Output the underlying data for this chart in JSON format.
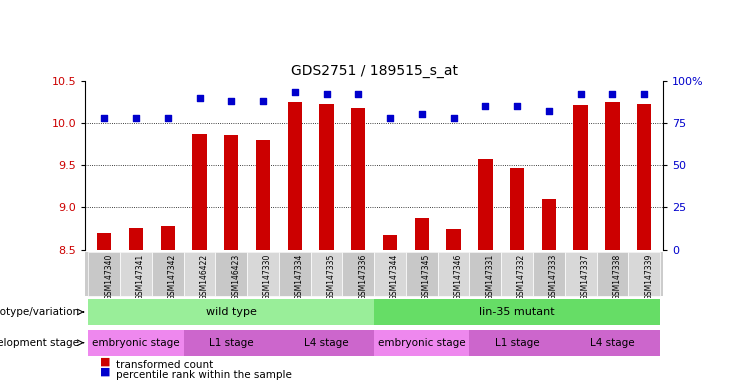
{
  "title": "GDS2751 / 189515_s_at",
  "samples": [
    "GSM147340",
    "GSM147341",
    "GSM147342",
    "GSM146422",
    "GSM146423",
    "GSM147330",
    "GSM147334",
    "GSM147335",
    "GSM147336",
    "GSM147344",
    "GSM147345",
    "GSM147346",
    "GSM147331",
    "GSM147332",
    "GSM147333",
    "GSM147337",
    "GSM147338",
    "GSM147339"
  ],
  "transformed_count": [
    8.7,
    8.75,
    8.78,
    9.87,
    9.86,
    9.8,
    10.25,
    10.22,
    10.18,
    8.67,
    8.87,
    8.74,
    9.57,
    9.47,
    9.1,
    10.21,
    10.25,
    10.22
  ],
  "percentile_rank": [
    78,
    78,
    78,
    90,
    88,
    88,
    93,
    92,
    92,
    78,
    80,
    78,
    85,
    85,
    82,
    92,
    92,
    92
  ],
  "ylim_left": [
    8.5,
    10.5
  ],
  "ylim_right": [
    0,
    100
  ],
  "yticks_left": [
    8.5,
    9.0,
    9.5,
    10.0,
    10.5
  ],
  "yticks_right": [
    0,
    25,
    50,
    75,
    100
  ],
  "bar_color": "#cc0000",
  "dot_color": "#0000cc",
  "grid_color": "#000000",
  "bg_color": "#ffffff",
  "plot_bg": "#ffffff",
  "genotype_groups": [
    {
      "label": "wild type",
      "start": 0,
      "end": 9,
      "color": "#99ee99"
    },
    {
      "label": "lin-35 mutant",
      "start": 9,
      "end": 18,
      "color": "#66dd66"
    }
  ],
  "dev_stage_groups": [
    {
      "label": "embryonic stage",
      "start": 0,
      "end": 3,
      "color": "#ee88ee"
    },
    {
      "label": "L1 stage",
      "start": 3,
      "end": 6,
      "color": "#cc66cc"
    },
    {
      "label": "L4 stage",
      "start": 6,
      "end": 9,
      "color": "#cc66cc"
    },
    {
      "label": "embryonic stage",
      "start": 9,
      "end": 12,
      "color": "#ee88ee"
    },
    {
      "label": "L1 stage",
      "start": 12,
      "end": 15,
      "color": "#cc66cc"
    },
    {
      "label": "L4 stage",
      "start": 15,
      "end": 18,
      "color": "#cc66cc"
    }
  ],
  "legend_items": [
    {
      "label": "transformed count",
      "color": "#cc0000"
    },
    {
      "label": "percentile rank within the sample",
      "color": "#0000cc"
    }
  ]
}
